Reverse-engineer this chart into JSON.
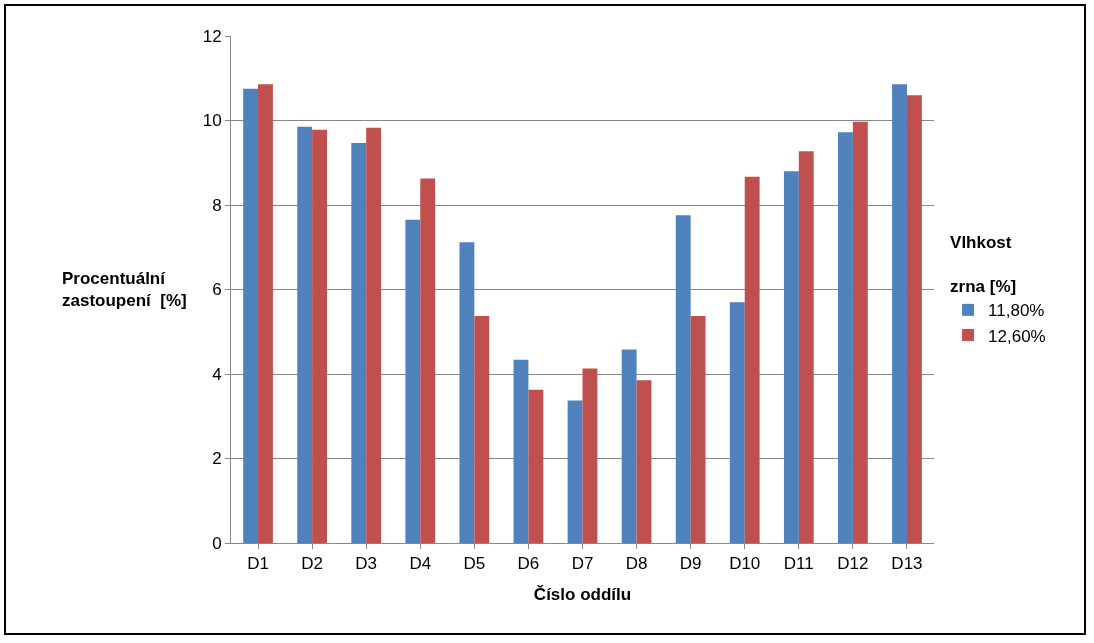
{
  "chart_data": {
    "type": "bar",
    "xlabel": "Číslo oddílu",
    "ylabel": "Procentuální\nzastoupení  [%]",
    "legend_title": "Vlhkost\n\nzrna [%]",
    "categories": [
      "D1",
      "D2",
      "D3",
      "D4",
      "D5",
      "D6",
      "D7",
      "D8",
      "D9",
      "D10",
      "D11",
      "D12",
      "D13"
    ],
    "series": [
      {
        "name": "11,80%",
        "color": "#4f81bd",
        "values": [
          10.75,
          9.85,
          9.47,
          7.65,
          7.12,
          4.34,
          3.37,
          4.58,
          7.76,
          5.7,
          8.8,
          9.72,
          10.86
        ]
      },
      {
        "name": "12,60%",
        "color": "#c0504d",
        "values": [
          10.86,
          9.78,
          9.83,
          8.63,
          5.37,
          3.63,
          4.13,
          3.85,
          5.37,
          8.67,
          9.27,
          9.97,
          10.6
        ]
      }
    ],
    "ylim": [
      0,
      12
    ],
    "yticks": [
      0,
      2,
      4,
      6,
      8,
      10,
      12
    ],
    "grid": "y",
    "legend": "right"
  }
}
